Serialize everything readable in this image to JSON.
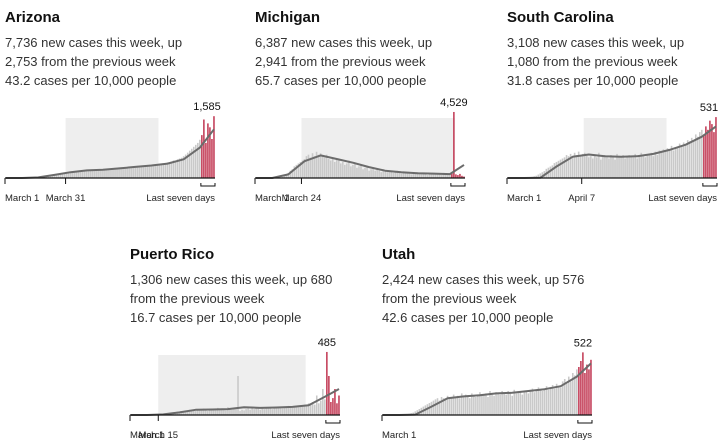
{
  "chart_data": [
    {
      "type": "bar",
      "title": "Arizona",
      "lines": [
        "7,736 new cases this week, up",
        "2,753 from the previous week",
        "43.2 cases per 10,000 people"
      ],
      "xlim": [
        0,
        104
      ],
      "ylim": [
        0,
        2000
      ],
      "xticks": [
        {
          "value": 0,
          "label": "March 1"
        },
        {
          "value": 30,
          "label": "March 31"
        }
      ],
      "shaded_range": [
        30,
        76
      ],
      "recent_label": "Last seven days",
      "bars": {
        "color": "#c9c9c9",
        "values": [
          0,
          0,
          0,
          0,
          0,
          0,
          0,
          0,
          1,
          2,
          3,
          4,
          5,
          7,
          10,
          15,
          20,
          25,
          30,
          40,
          50,
          60,
          70,
          80,
          90,
          100,
          110,
          120,
          130,
          140,
          150,
          140,
          160,
          170,
          150,
          180,
          190,
          170,
          160,
          180,
          200,
          190,
          210,
          180,
          220,
          230,
          200,
          210,
          190,
          220,
          230,
          240,
          220,
          250,
          260,
          230,
          270,
          240,
          250,
          260,
          280,
          270,
          290,
          260,
          300,
          310,
          280,
          290,
          300,
          320,
          300,
          330,
          310,
          340,
          320,
          350,
          360,
          340,
          370,
          380,
          400,
          390,
          420,
          450,
          430,
          480,
          500,
          520,
          560,
          600,
          650,
          700,
          750,
          800,
          850,
          900,
          980
        ]
      },
      "recent": {
        "color": "#c4405a",
        "values": [
          1100,
          1500,
          900,
          1400,
          1300,
          1000,
          1585
        ],
        "value_labels": [
          null,
          null,
          null,
          null,
          null,
          null,
          "1,585"
        ]
      },
      "average": {
        "color": "#6b6b6b",
        "x": [
          0,
          8,
          16,
          24,
          32,
          40,
          48,
          56,
          64,
          72,
          80,
          88,
          96,
          103
        ],
        "values": [
          0,
          1,
          15,
          80,
          150,
          195,
          210,
          245,
          285,
          320,
          370,
          480,
          780,
          1250
        ]
      }
    },
    {
      "type": "bar",
      "title": "Michigan",
      "lines": [
        "6,387 new cases this week, up",
        "2,941 from the previous week",
        "65.7 cases per 10,000 people"
      ],
      "xlim": [
        0,
        104
      ],
      "ylim": [
        0,
        5350
      ],
      "xticks": [
        {
          "value": 0,
          "label": "March 1"
        },
        {
          "value": 23,
          "label": "March 24"
        }
      ],
      "shaded_range": [
        23,
        99
      ],
      "recent_label": "Last seven days",
      "bars": {
        "color": "#c9c9c9",
        "values": [
          0,
          0,
          0,
          0,
          0,
          0,
          0,
          0,
          0,
          2,
          10,
          20,
          40,
          80,
          150,
          250,
          350,
          500,
          600,
          800,
          900,
          1000,
          1100,
          1200,
          1300,
          1500,
          1600,
          1400,
          1700,
          1500,
          1800,
          1600,
          1700,
          1500,
          1400,
          1600,
          1300,
          1200,
          1400,
          1100,
          1300,
          1200,
          1000,
          1100,
          900,
          1000,
          1200,
          800,
          900,
          1000,
          700,
          800,
          900,
          600,
          700,
          800,
          500,
          600,
          700,
          500,
          600,
          500,
          400,
          600,
          500,
          400,
          500,
          450,
          350,
          400,
          500,
          400,
          300,
          450,
          350,
          400,
          300,
          250,
          350,
          300,
          400,
          300,
          250,
          350,
          300,
          200,
          300,
          250,
          350,
          300,
          250,
          300,
          200,
          350,
          250,
          300,
          200
        ]
      },
      "recent": {
        "color": "#c4405a",
        "values": [
          300,
          4529,
          250,
          200,
          280,
          150,
          100
        ],
        "value_labels": [
          null,
          "4,529",
          null,
          null,
          null,
          null,
          null
        ]
      },
      "average": {
        "color": "#6b6b6b",
        "x": [
          0,
          8,
          16,
          24,
          32,
          40,
          48,
          56,
          64,
          72,
          80,
          88,
          96,
          103
        ],
        "values": [
          0,
          0,
          250,
          1150,
          1550,
          1300,
          1050,
          750,
          500,
          400,
          320,
          300,
          270,
          900
        ]
      }
    },
    {
      "type": "bar",
      "title": "South Carolina",
      "lines": [
        "3,108 new cases this week, up",
        "1,080 from the previous week",
        "31.8 cases per 10,000 people"
      ],
      "xlim": [
        0,
        104
      ],
      "ylim": [
        0,
        680
      ],
      "xticks": [
        {
          "value": 0,
          "label": "March 1"
        },
        {
          "value": 37,
          "label": "April 7"
        }
      ],
      "shaded_range": [
        38,
        79
      ],
      "recent_label": "Last seven days",
      "bars": {
        "color": "#c9c9c9",
        "values": [
          0,
          0,
          0,
          0,
          0,
          0,
          0,
          0,
          1,
          2,
          5,
          8,
          10,
          15,
          20,
          30,
          40,
          50,
          60,
          80,
          90,
          100,
          110,
          130,
          140,
          150,
          160,
          170,
          180,
          200,
          190,
          210,
          180,
          220,
          200,
          230,
          190,
          210,
          220,
          200,
          180,
          190,
          170,
          200,
          180,
          220,
          160,
          190,
          200,
          180,
          170,
          200,
          190,
          160,
          210,
          180,
          190,
          200,
          170,
          180,
          200,
          190,
          180,
          210,
          170,
          200,
          220,
          190,
          180,
          200,
          210,
          220,
          190,
          230,
          200,
          240,
          220,
          250,
          230,
          260,
          250,
          280,
          240,
          270,
          260,
          300,
          280,
          310,
          290,
          330,
          320,
          350,
          330,
          380,
          360,
          400,
          420
        ]
      },
      "recent": {
        "color": "#c4405a",
        "values": [
          380,
          450,
          420,
          500,
          470,
          400,
          531
        ],
        "value_labels": [
          null,
          null,
          null,
          null,
          null,
          null,
          "531"
        ]
      },
      "average": {
        "color": "#6b6b6b",
        "x": [
          0,
          8,
          16,
          24,
          32,
          40,
          48,
          56,
          64,
          72,
          80,
          88,
          96,
          103
        ],
        "values": [
          0,
          0,
          2,
          100,
          185,
          205,
          190,
          185,
          190,
          210,
          245,
          290,
          360,
          450
        ]
      }
    },
    {
      "type": "bar",
      "title": "Puerto Rico",
      "lines": [
        "1,306 new cases this week, up 680",
        "from the previous week",
        "16.7 cases per 10,000 people"
      ],
      "xlim": [
        0,
        104
      ],
      "ylim": [
        0,
        600
      ],
      "xticks": [
        {
          "value": 0,
          "label": "March 1"
        },
        {
          "value": 14,
          "label": "March 15"
        }
      ],
      "shaded_range": [
        14,
        87
      ],
      "recent_label": "Last seven days",
      "bars": {
        "color": "#c9c9c9",
        "values": [
          0,
          0,
          0,
          0,
          0,
          0,
          0,
          0,
          0,
          0,
          0,
          0,
          0,
          2,
          3,
          5,
          5,
          8,
          10,
          15,
          10,
          20,
          15,
          25,
          20,
          30,
          25,
          35,
          30,
          40,
          35,
          40,
          30,
          45,
          40,
          35,
          50,
          40,
          30,
          45,
          50,
          40,
          35,
          55,
          45,
          40,
          50,
          35,
          60,
          45,
          40,
          50,
          45,
          300,
          30,
          40,
          35,
          45,
          50,
          40,
          55,
          45,
          60,
          50,
          40,
          55,
          45,
          50,
          60,
          55,
          45,
          60,
          50,
          55,
          65,
          50,
          60,
          55,
          70,
          60,
          55,
          65,
          70,
          60,
          75,
          65,
          80,
          70,
          90,
          85,
          100,
          80,
          150,
          90,
          110,
          200,
          120
        ]
      },
      "recent": {
        "color": "#c4405a",
        "values": [
          485,
          300,
          100,
          130,
          200,
          90,
          150
        ],
        "value_labels": [
          "485",
          null,
          null,
          null,
          null,
          null,
          null
        ]
      },
      "average": {
        "color": "#6b6b6b",
        "x": [
          0,
          8,
          16,
          24,
          32,
          40,
          48,
          56,
          64,
          72,
          80,
          88,
          96,
          103
        ],
        "values": [
          0,
          0,
          5,
          20,
          40,
          42,
          45,
          60,
          55,
          58,
          62,
          75,
          140,
          200
        ]
      }
    },
    {
      "type": "bar",
      "title": "Utah",
      "lines": [
        "2,424 new cases this week, up 576",
        "from the previous week",
        "42.6 cases per 10,000 people"
      ],
      "xlim": [
        0,
        104
      ],
      "ylim": [
        0,
        650
      ],
      "xticks": [
        {
          "value": 0,
          "label": "March 1"
        }
      ],
      "recent_label": "Last seven days",
      "bars": {
        "color": "#c9c9c9",
        "values": [
          0,
          0,
          0,
          0,
          0,
          0,
          0,
          0,
          0,
          1,
          2,
          4,
          6,
          10,
          15,
          20,
          30,
          40,
          50,
          60,
          70,
          80,
          90,
          100,
          110,
          120,
          130,
          140,
          120,
          150,
          140,
          130,
          160,
          150,
          140,
          170,
          150,
          160,
          140,
          180,
          150,
          170,
          160,
          140,
          180,
          160,
          150,
          170,
          190,
          160,
          170,
          180,
          150,
          200,
          170,
          160,
          190,
          180,
          170,
          200,
          180,
          170,
          200,
          190,
          160,
          210,
          180,
          190,
          200,
          170,
          190,
          200,
          180,
          210,
          220,
          190,
          200,
          230,
          210,
          200,
          220,
          240,
          210,
          230,
          250,
          220,
          260,
          240,
          230,
          280,
          300,
          260,
          320,
          280,
          350,
          330,
          380
        ]
      },
      "recent": {
        "color": "#c4405a",
        "values": [
          400,
          450,
          522,
          350,
          420,
          380,
          460
        ],
        "value_labels": [
          null,
          null,
          "522",
          null,
          null,
          null,
          null
        ]
      },
      "average": {
        "color": "#6b6b6b",
        "x": [
          0,
          8,
          16,
          24,
          32,
          40,
          48,
          56,
          64,
          72,
          80,
          88,
          96,
          103
        ],
        "values": [
          0,
          0,
          3,
          70,
          140,
          155,
          165,
          180,
          185,
          200,
          215,
          240,
          320,
          430
        ]
      }
    }
  ]
}
